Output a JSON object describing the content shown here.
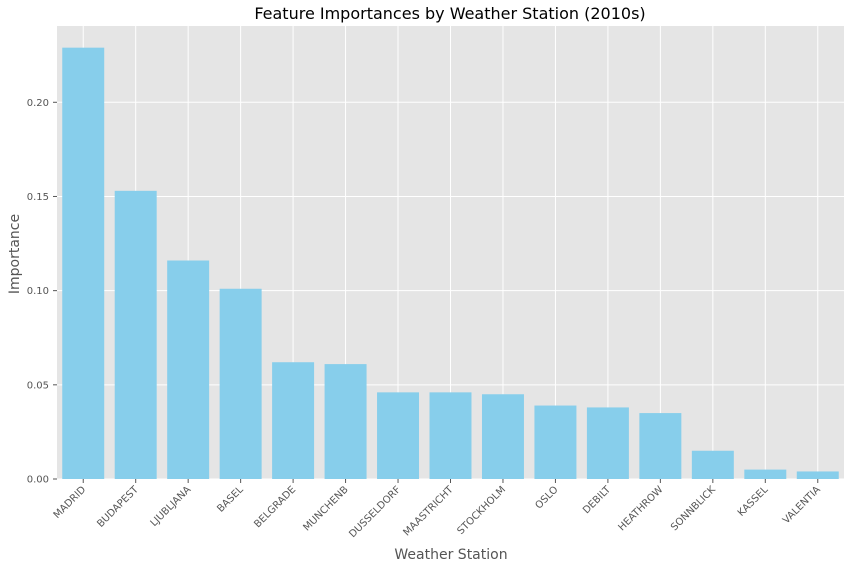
{
  "chart_data": {
    "type": "bar",
    "title": "Feature Importances by Weather Station (2010s)",
    "xlabel": "Weather Station",
    "ylabel": "Importance",
    "categories": [
      "MADRID",
      "BUDAPEST",
      "LJUBLJANA",
      "BASEL",
      "BELGRADE",
      "MUNCHENB",
      "DUSSELDORF",
      "MAASTRICHT",
      "STOCKHOLM",
      "OSLO",
      "DEBILT",
      "HEATHROW",
      "SONNBLICK",
      "KASSEL",
      "VALENTIA"
    ],
    "values": [
      0.229,
      0.153,
      0.116,
      0.101,
      0.062,
      0.061,
      0.046,
      0.046,
      0.045,
      0.039,
      0.038,
      0.035,
      0.015,
      0.005,
      0.004
    ],
    "yticks": [
      "0.00",
      "0.05",
      "0.10",
      "0.15",
      "0.20"
    ],
    "ylim": [
      0,
      0.2405
    ],
    "grid": true,
    "colors": {
      "bar": "#87CEEB",
      "plot_bg": "#E5E5E5",
      "grid": "#FFFFFF"
    }
  }
}
